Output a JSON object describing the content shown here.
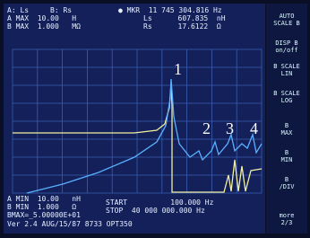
{
  "header": {
    "a_param": "A: Ls",
    "b_param": "B: Rs",
    "a_max": "A MAX  10.00   H",
    "b_max": "B MAX  1.000   MΩ"
  },
  "marker": {
    "frequency": "● MKR  11 745 304.816 Hz",
    "a_value": "Ls      607.835  nH",
    "b_value": "Rs      17.6122  Ω"
  },
  "softkeys": [
    "AUTO\nSCALE B",
    "DISP B\non/off",
    "B SCALE\nLIN",
    "B SCALE\nLOG",
    "B\nMAX",
    "B\nMIN",
    "B\n/DIV",
    "more\n2/3"
  ],
  "footer": {
    "a_min": "A MIN  10.00   nH",
    "b_min": "B MIN  1.000   Ω",
    "entry": "BMAX=_5.00000E+01",
    "version": "Ver 2.4 AUG/15/87 8733 OPT350",
    "start": "START          100.000 Hz",
    "stop": "STOP  40 000 000.000 Hz"
  },
  "annotations": [
    "1",
    "2",
    "3",
    "4"
  ]
}
